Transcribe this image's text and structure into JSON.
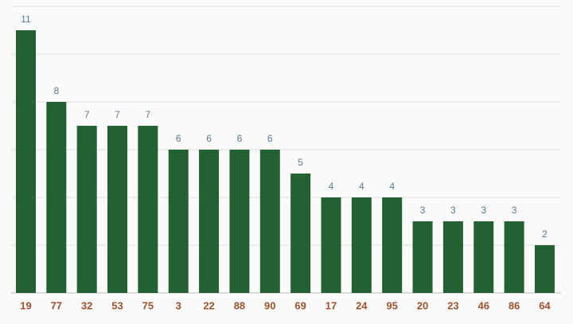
{
  "chart_data": {
    "type": "bar",
    "categories": [
      "19",
      "77",
      "32",
      "53",
      "75",
      "3",
      "22",
      "88",
      "90",
      "69",
      "17",
      "24",
      "95",
      "20",
      "23",
      "46",
      "86",
      "64"
    ],
    "values": [
      11,
      8,
      7,
      7,
      7,
      6,
      6,
      6,
      6,
      5,
      4,
      4,
      4,
      3,
      3,
      3,
      3,
      2
    ],
    "color": "#236133",
    "ylim": [
      0,
      12
    ],
    "yticks": [
      0,
      2,
      4,
      6,
      8,
      10,
      12
    ],
    "grid": true
  }
}
